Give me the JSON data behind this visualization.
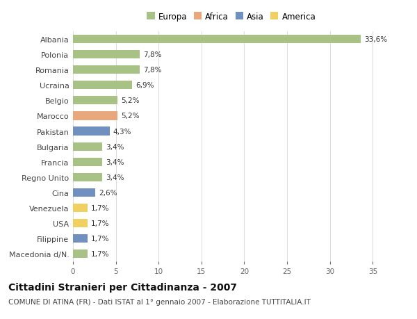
{
  "countries": [
    "Albania",
    "Polonia",
    "Romania",
    "Ucraina",
    "Belgio",
    "Marocco",
    "Pakistan",
    "Bulgaria",
    "Francia",
    "Regno Unito",
    "Cina",
    "Venezuela",
    "USA",
    "Filippine",
    "Macedonia d/N."
  ],
  "values": [
    33.6,
    7.8,
    7.8,
    6.9,
    5.2,
    5.2,
    4.3,
    3.4,
    3.4,
    3.4,
    2.6,
    1.7,
    1.7,
    1.7,
    1.7
  ],
  "labels": [
    "33,6%",
    "7,8%",
    "7,8%",
    "6,9%",
    "5,2%",
    "5,2%",
    "4,3%",
    "3,4%",
    "3,4%",
    "3,4%",
    "2,6%",
    "1,7%",
    "1,7%",
    "1,7%",
    "1,7%"
  ],
  "continents": [
    "Europa",
    "Europa",
    "Europa",
    "Europa",
    "Europa",
    "Africa",
    "Asia",
    "Europa",
    "Europa",
    "Europa",
    "Asia",
    "America",
    "America",
    "Asia",
    "Europa"
  ],
  "continent_colors": {
    "Europa": "#a8c185",
    "Africa": "#e8a87c",
    "Asia": "#7090c0",
    "America": "#f0d060"
  },
  "legend_order": [
    "Europa",
    "Africa",
    "Asia",
    "America"
  ],
  "title": "Cittadini Stranieri per Cittadinanza - 2007",
  "subtitle": "COMUNE DI ATINA (FR) - Dati ISTAT al 1° gennaio 2007 - Elaborazione TUTTITALIA.IT",
  "xlim": [
    0,
    37
  ],
  "xticks": [
    0,
    5,
    10,
    15,
    20,
    25,
    30,
    35
  ],
  "bg_color": "#ffffff",
  "grid_color": "#dddddd",
  "bar_height": 0.55,
  "label_fontsize": 7.5,
  "title_fontsize": 10,
  "subtitle_fontsize": 7.5,
  "country_fontsize": 8,
  "tick_fontsize": 7.5
}
